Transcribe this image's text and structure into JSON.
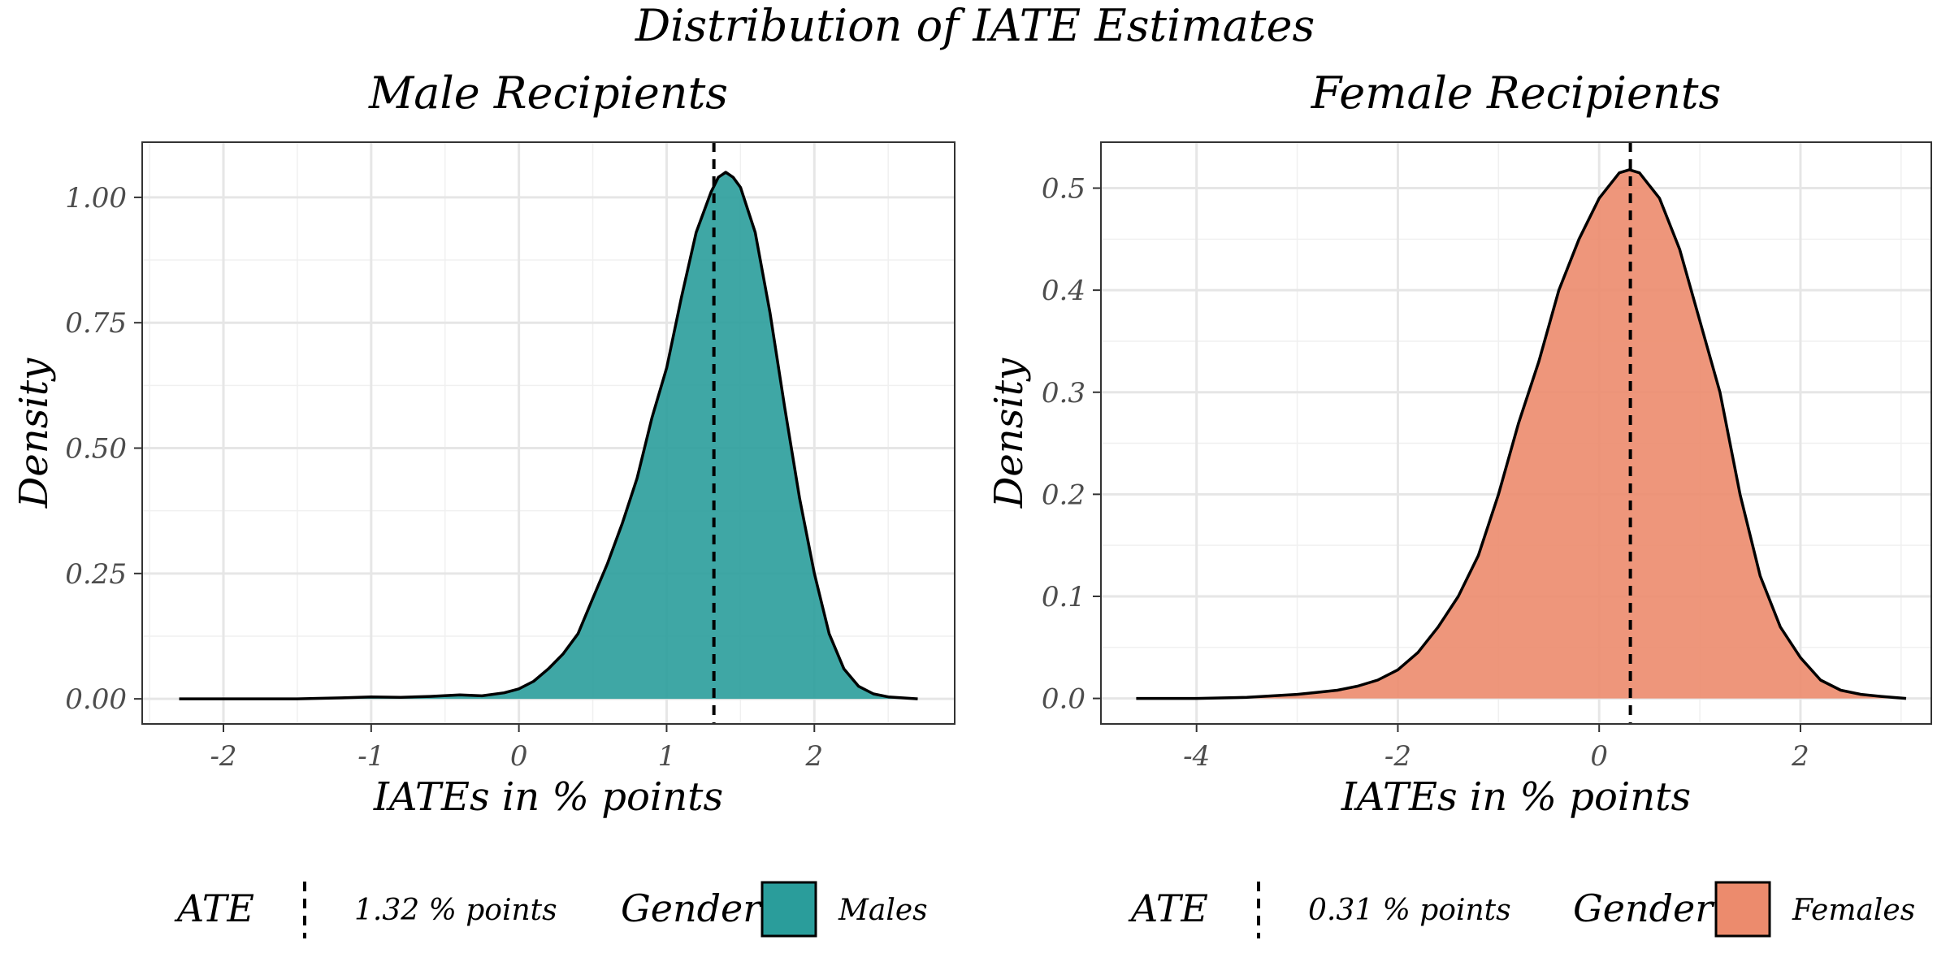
{
  "figure": {
    "title": "Distribution of IATE Estimates"
  },
  "chart_data": [
    {
      "type": "area",
      "subtype": "density",
      "title": "Male Recipients",
      "xlabel": "IATEs in % points",
      "ylabel": "Density",
      "xlim": [
        -2.55,
        2.95
      ],
      "ylim": [
        -0.05,
        1.11
      ],
      "grid": true,
      "fill_color": "#2a9d9b",
      "x_ticks": [
        -2,
        -1,
        0,
        1,
        2
      ],
      "x_tick_labels": [
        "-2",
        "-1",
        "0",
        "1",
        "2"
      ],
      "y_ticks": [
        0,
        0.25,
        0.5,
        0.75,
        1.0
      ],
      "y_tick_labels": [
        "0.00",
        "0.25",
        "0.50",
        "0.75",
        "1.00"
      ],
      "x": [
        -2.3,
        -2.0,
        -1.5,
        -1.2,
        -1.0,
        -0.8,
        -0.6,
        -0.4,
        -0.25,
        -0.1,
        0.0,
        0.1,
        0.2,
        0.3,
        0.4,
        0.5,
        0.6,
        0.7,
        0.8,
        0.9,
        1.0,
        1.1,
        1.2,
        1.3,
        1.35,
        1.4,
        1.45,
        1.5,
        1.6,
        1.7,
        1.8,
        1.9,
        2.0,
        2.1,
        2.2,
        2.3,
        2.4,
        2.5,
        2.7
      ],
      "y": [
        0.0,
        0.0,
        0.0,
        0.002,
        0.004,
        0.003,
        0.005,
        0.008,
        0.006,
        0.012,
        0.02,
        0.035,
        0.06,
        0.09,
        0.13,
        0.2,
        0.27,
        0.35,
        0.44,
        0.56,
        0.66,
        0.8,
        0.93,
        1.01,
        1.04,
        1.05,
        1.04,
        1.02,
        0.93,
        0.77,
        0.58,
        0.4,
        0.25,
        0.13,
        0.06,
        0.025,
        0.01,
        0.004,
        0.0
      ],
      "ate_line": 1.32,
      "legend": {
        "ate_title": "ATE",
        "ate_label": "1.32 % points",
        "gender_title": "Gender",
        "gender_label": "Males"
      }
    },
    {
      "type": "area",
      "subtype": "density",
      "title": "Female Recipients",
      "xlabel": "IATEs in % points",
      "ylabel": "Density",
      "xlim": [
        -4.95,
        3.3
      ],
      "ylim": [
        -0.025,
        0.545
      ],
      "grid": true,
      "fill_color": "#ec8b6d",
      "x_ticks": [
        -4,
        -2,
        0,
        2
      ],
      "x_tick_labels": [
        "-4",
        "-2",
        "0",
        "2"
      ],
      "y_ticks": [
        0,
        0.1,
        0.2,
        0.3,
        0.4,
        0.5
      ],
      "y_tick_labels": [
        "0.0",
        "0.1",
        "0.2",
        "0.3",
        "0.4",
        "0.5"
      ],
      "x": [
        -4.6,
        -4.0,
        -3.5,
        -3.0,
        -2.8,
        -2.6,
        -2.4,
        -2.2,
        -2.0,
        -1.8,
        -1.6,
        -1.4,
        -1.2,
        -1.0,
        -0.8,
        -0.6,
        -0.4,
        -0.2,
        0.0,
        0.2,
        0.3,
        0.4,
        0.6,
        0.8,
        1.0,
        1.2,
        1.4,
        1.6,
        1.8,
        2.0,
        2.2,
        2.4,
        2.6,
        2.8,
        3.05
      ],
      "y": [
        0.0,
        0.0,
        0.001,
        0.004,
        0.006,
        0.008,
        0.012,
        0.018,
        0.028,
        0.045,
        0.07,
        0.1,
        0.14,
        0.2,
        0.27,
        0.33,
        0.4,
        0.45,
        0.49,
        0.515,
        0.518,
        0.515,
        0.49,
        0.44,
        0.37,
        0.3,
        0.2,
        0.12,
        0.07,
        0.04,
        0.018,
        0.008,
        0.004,
        0.002,
        0.0
      ],
      "ate_line": 0.31,
      "legend": {
        "ate_title": "ATE",
        "ate_label": "0.31 % points",
        "gender_title": "Gender",
        "gender_label": "Females"
      }
    }
  ]
}
